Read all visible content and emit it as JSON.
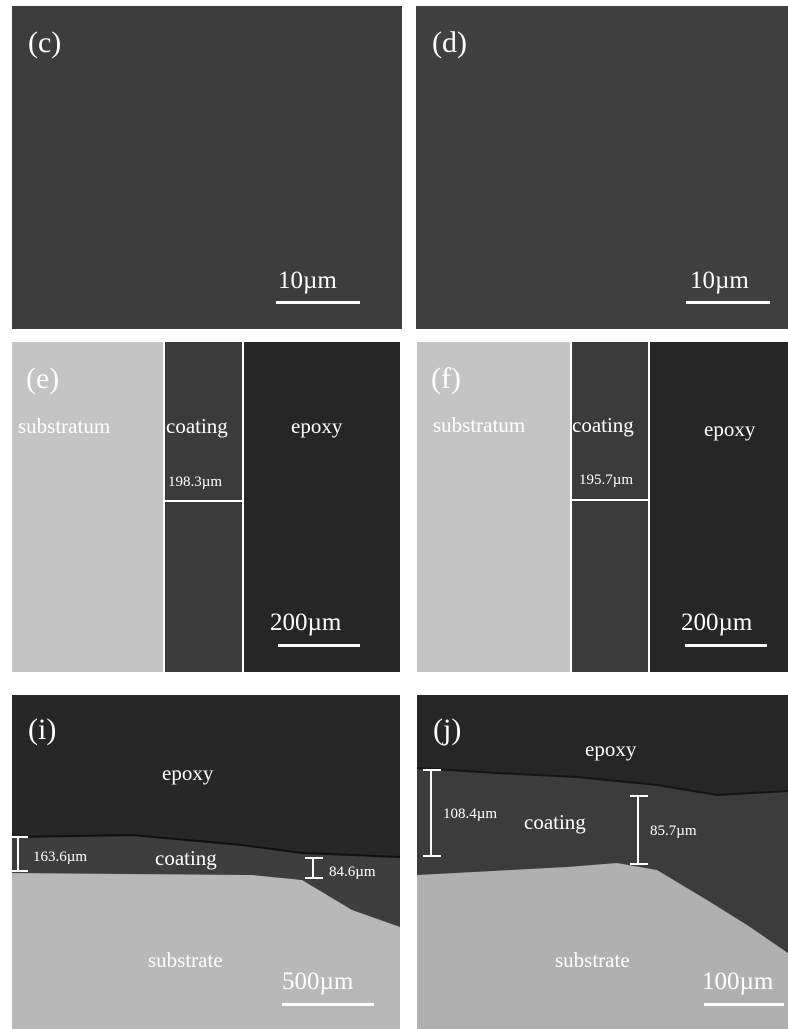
{
  "panels": {
    "c": {
      "label": "(c)",
      "scalebar": "10µm"
    },
    "d": {
      "label": "(d)",
      "scalebar": "10µm"
    },
    "e": {
      "label": "(e)",
      "substratum": "substratum",
      "coating": "coating",
      "epoxy": "epoxy",
      "thickness": "198.3µm",
      "scalebar": "200µm"
    },
    "f": {
      "label": "(f)",
      "substratum": "substratum",
      "coating": "coating",
      "epoxy": "epoxy",
      "thickness": "195.7µm",
      "scalebar": "200µm"
    },
    "i": {
      "label": "(i)",
      "epoxy": "epoxy",
      "coating": "coating",
      "substrate": "substrate",
      "thickness_left": "163.6µm",
      "thickness_right": "84.6µm",
      "scalebar": "500µm"
    },
    "j": {
      "label": "(j)",
      "epoxy": "epoxy",
      "coating": "coating",
      "substrate": "substrate",
      "thickness_left": "108.4µm",
      "thickness_right": "85.7µm",
      "scalebar": "100µm"
    }
  },
  "colors": {
    "sem_dark": "#3d3d3d",
    "epoxy": "#252525",
    "coating": "#3a3a3a",
    "substrate": "#bdbdbd"
  }
}
